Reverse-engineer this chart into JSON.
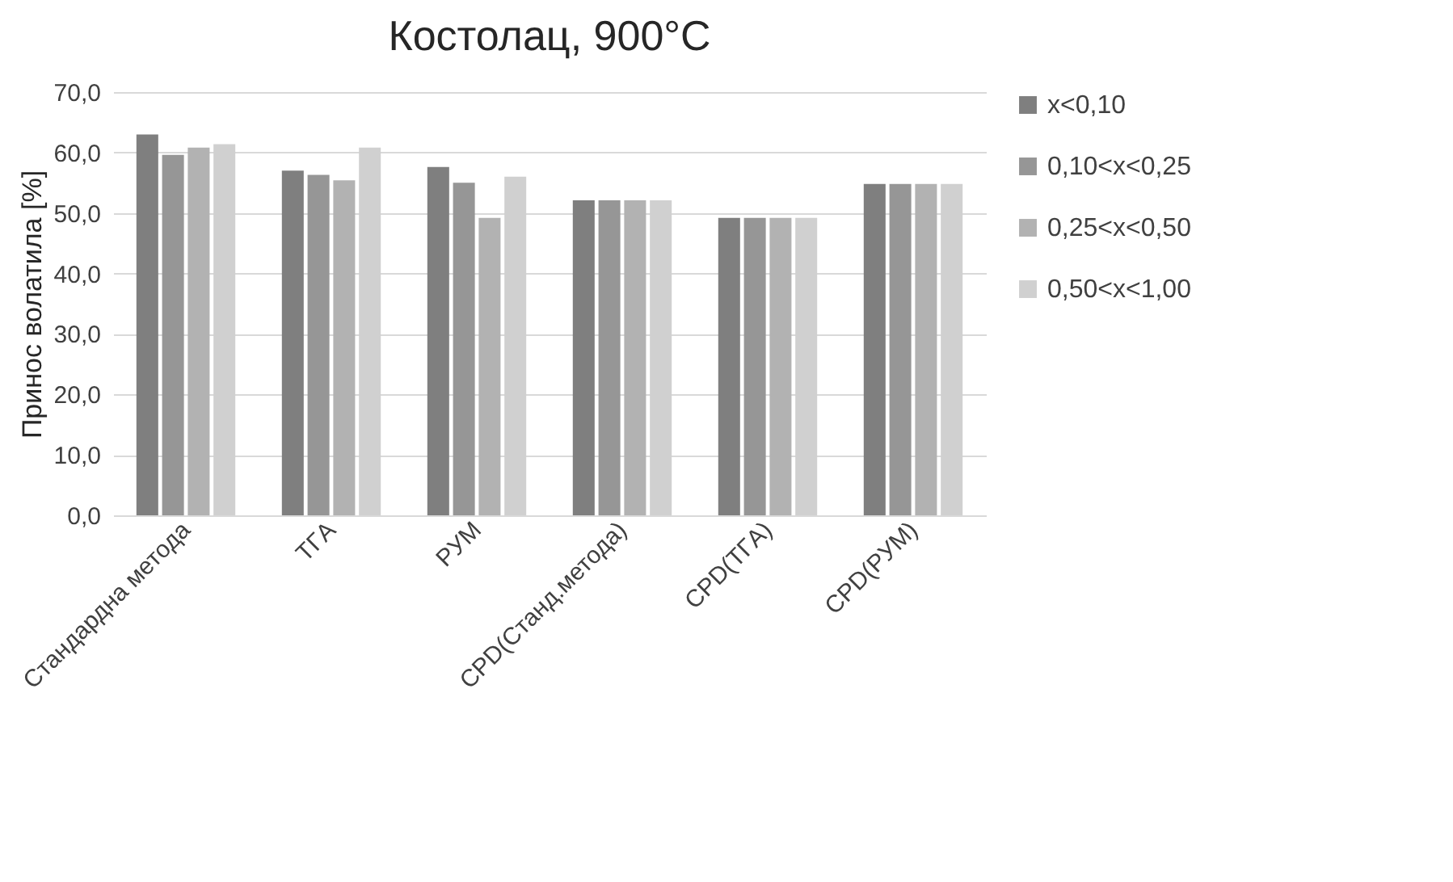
{
  "chart_data": {
    "type": "bar",
    "title": "Костолац, 900°C",
    "ylabel": "Принос волатила [%]",
    "categories": [
      "Стандардна метода",
      "TГA",
      "PУM",
      "CPD(Станд.метода)",
      "CPD(TГA)",
      "CPD(PУM)"
    ],
    "series": [
      {
        "name": "x<0,10",
        "color": "#7f7f7f",
        "values": [
          63.0,
          57.0,
          57.6,
          52.1,
          49.2,
          54.8
        ]
      },
      {
        "name": "0,10<x<0,25",
        "color": "#969696",
        "values": [
          59.6,
          56.3,
          55.0,
          52.1,
          49.2,
          54.8
        ]
      },
      {
        "name": "0,25<x<0,50",
        "color": "#b2b2b2",
        "values": [
          60.8,
          55.4,
          49.2,
          52.1,
          49.2,
          54.8
        ]
      },
      {
        "name": "0,50<x<1,00",
        "color": "#d0d0d0",
        "values": [
          61.4,
          60.8,
          56.0,
          52.1,
          49.2,
          54.8
        ]
      }
    ],
    "ylim": [
      0,
      70
    ],
    "yticks": [
      {
        "value": 0,
        "label": "0,0"
      },
      {
        "value": 10,
        "label": "10,0"
      },
      {
        "value": 20,
        "label": "20,0"
      },
      {
        "value": 30,
        "label": "30,0"
      },
      {
        "value": 40,
        "label": "40,0"
      },
      {
        "value": 50,
        "label": "50,0"
      },
      {
        "value": 60,
        "label": "60,0"
      },
      {
        "value": 70,
        "label": "70,0"
      }
    ],
    "grid": "y",
    "legend": "right"
  }
}
